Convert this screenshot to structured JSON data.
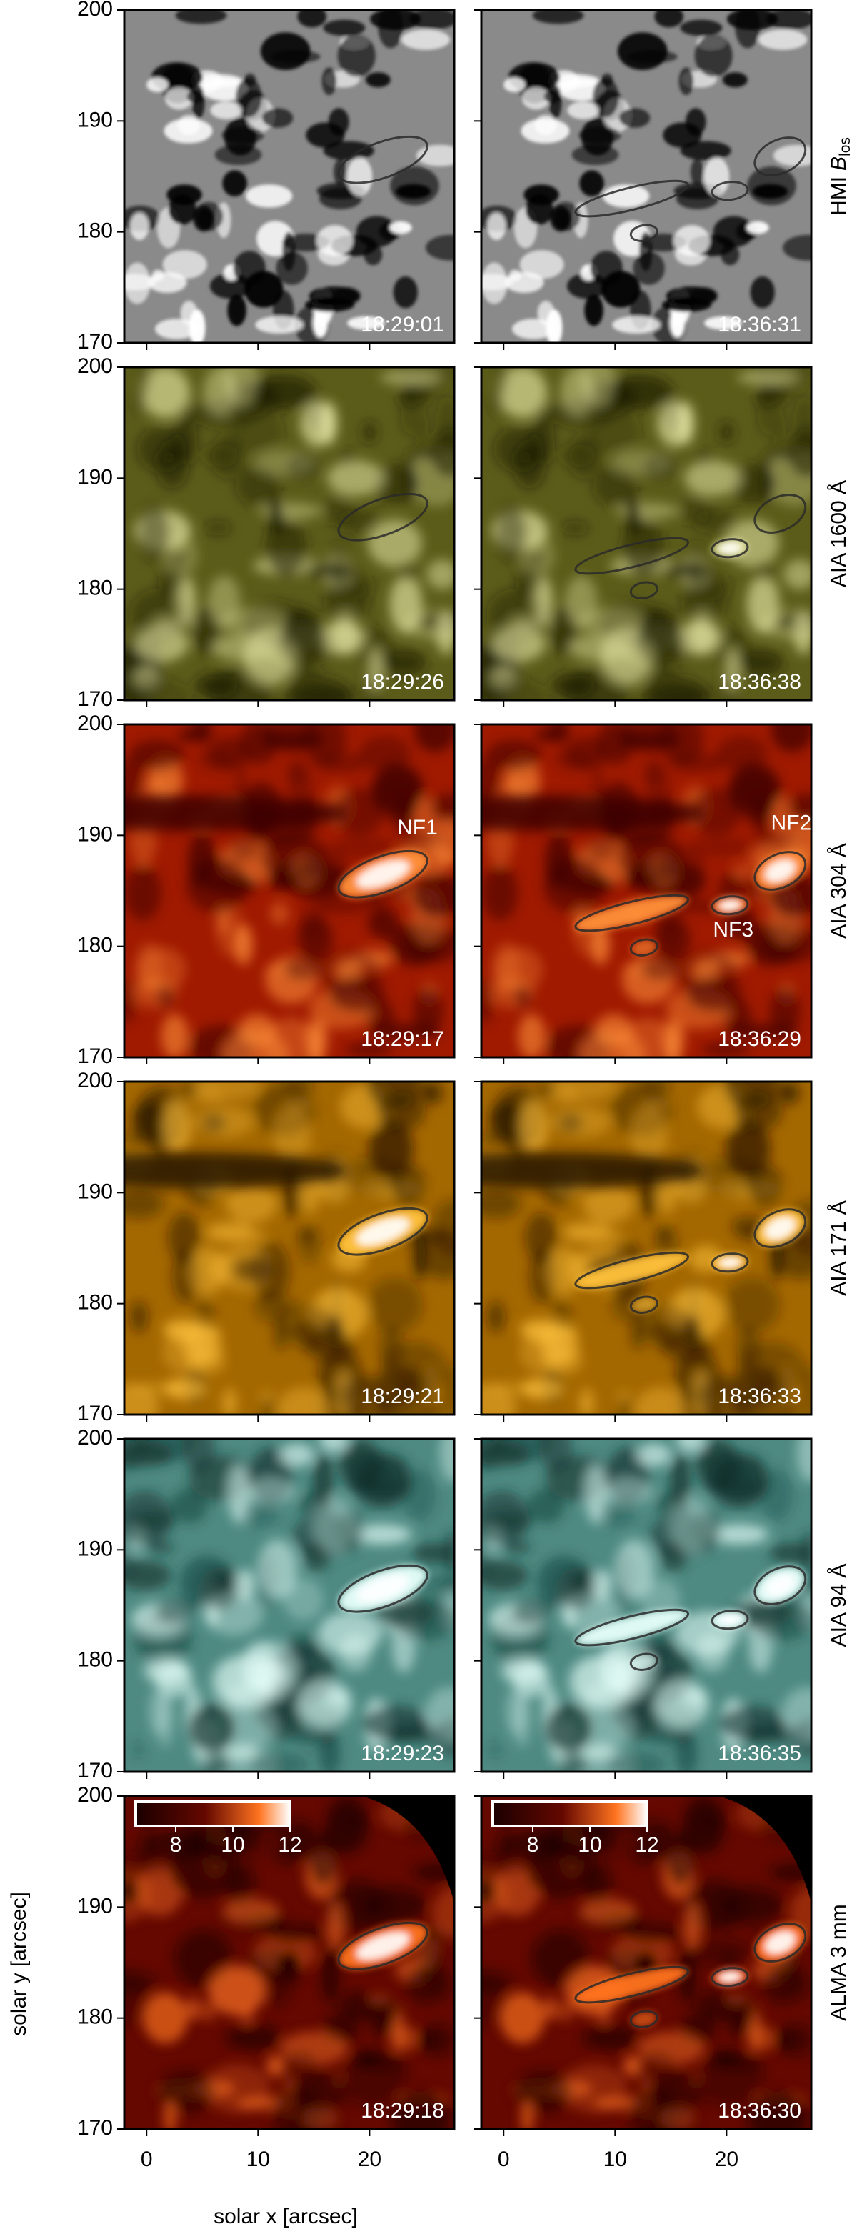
{
  "chart_data": {
    "type": "image",
    "xlabel": "solar x [arcsec]",
    "ylabel": "solar y [arcsec]",
    "xlim": [
      -2,
      27.6
    ],
    "ylim": [
      170,
      200
    ],
    "xticks": [
      0,
      10,
      20
    ],
    "yticks": [
      170,
      180,
      190,
      200
    ],
    "rows": [
      {
        "label": "HMI",
        "label_symbol": "B",
        "label_subscript": "los",
        "times": [
          "18:29:01",
          "18:36:31"
        ],
        "colors": [
          "#000000",
          "#8a8a8a",
          "#ffffff"
        ]
      },
      {
        "label": "AIA 1600 Å",
        "times": [
          "18:29:26",
          "18:36:38"
        ],
        "colors": [
          "#1c1c04",
          "#5c5c1a",
          "#e6e6a4"
        ]
      },
      {
        "label": "AIA 304 Å",
        "times": [
          "18:29:17",
          "18:36:29"
        ],
        "colors": [
          "#3c0000",
          "#a01a00",
          "#ff9038"
        ],
        "annotations": [
          [
            "NF1"
          ],
          [
            "NF2",
            "NF3"
          ]
        ]
      },
      {
        "label": "AIA 171 Å",
        "times": [
          "18:29:21",
          "18:36:33"
        ],
        "colors": [
          "#281600",
          "#a46800",
          "#ffc23c"
        ]
      },
      {
        "label": "AIA 94 Å",
        "times": [
          "18:29:23",
          "18:36:35"
        ],
        "colors": [
          "#0e2e2a",
          "#4e8a82",
          "#e6fffa"
        ]
      },
      {
        "label": "ALMA 3 mm",
        "times": [
          "18:29:18",
          "18:36:30"
        ],
        "colors": [
          "#1a0000",
          "#640800",
          "#ff7420"
        ],
        "colorbar": {
          "lim": [
            6.6,
            12
          ],
          "ticks": [
            8,
            10,
            12
          ]
        }
      }
    ]
  }
}
